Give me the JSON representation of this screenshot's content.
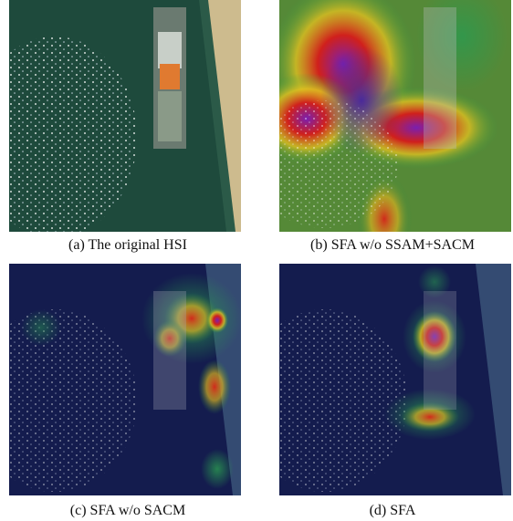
{
  "figure": {
    "panels": [
      {
        "caption": "(a) The original HSI"
      },
      {
        "caption": "(b) SFA w/o SSAM+SACM"
      },
      {
        "caption": "(c) SFA w/o SACM"
      },
      {
        "caption": "(d) SFA"
      }
    ]
  }
}
